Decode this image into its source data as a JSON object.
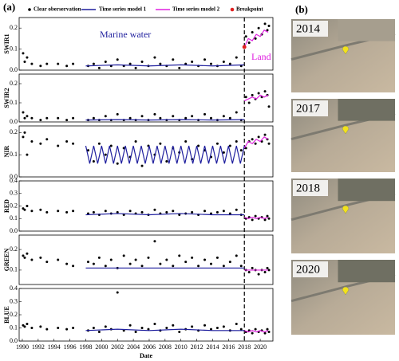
{
  "panel_label_a": "(a)",
  "panel_label_b": "(b)",
  "annotations": {
    "left": "Marine water",
    "right": "Land"
  },
  "images": [
    {
      "year": "2014"
    },
    {
      "year": "2017"
    },
    {
      "year": "2018"
    },
    {
      "year": "2020"
    }
  ],
  "chart_data": [
    {
      "type": "scatter",
      "ylabel": "SWIR1",
      "xlim": [
        1989.6,
        2021.6
      ],
      "ylim": [
        0,
        0.25
      ],
      "yticks": [
        {
          "value": 0,
          "label": "0.0"
        },
        0.1,
        0.2
      ],
      "breakpoint": {
        "name": "Breakpoint",
        "color": "#e02020",
        "x": 2018,
        "value": 0.11
      },
      "series": [
        {
          "name": "Clear oberservation",
          "color": "#000000",
          "style": "points",
          "x": [
            1990.1,
            1990.3,
            1990.6,
            1991.2,
            1992.3,
            1993.1,
            1994.5,
            1995.6,
            1996.4,
            1998.3,
            1999.0,
            1999.7,
            2000.5,
            2001.2,
            2002.0,
            2002.8,
            2003.6,
            2004.3,
            2005.1,
            2005.9,
            2006.7,
            2007.4,
            2008.2,
            2009.0,
            2009.8,
            2010.6,
            2011.4,
            2012.2,
            2013.0,
            2013.8,
            2014.6,
            2015.4,
            2016.2,
            2017.0,
            2017.6,
            2018.2,
            2018.6,
            2019.0,
            2019.4,
            2019.8,
            2020.2,
            2020.6,
            2020.9,
            2021.1
          ],
          "values": [
            0.08,
            0.04,
            0.06,
            0.03,
            0.02,
            0.03,
            0.03,
            0.02,
            0.03,
            0.02,
            0.03,
            0.01,
            0.04,
            0.02,
            0.05,
            0.02,
            0.03,
            0.01,
            0.04,
            0.02,
            0.06,
            0.03,
            0.02,
            0.05,
            0.01,
            0.03,
            0.04,
            0.02,
            0.05,
            0.03,
            0.02,
            0.04,
            0.03,
            0.06,
            0.02,
            0.16,
            0.13,
            0.18,
            0.15,
            0.2,
            0.17,
            0.22,
            0.19,
            0.21
          ]
        },
        {
          "name": "Time series model 1",
          "color": "#1f1f9e",
          "style": "line",
          "x": [
            1998,
            2002,
            2006,
            2010,
            2014,
            2018
          ],
          "values": [
            0.02,
            0.025,
            0.02,
            0.025,
            0.02,
            0.025
          ]
        },
        {
          "name": "Time series model 2",
          "color": "#e020e0",
          "style": "line",
          "x": [
            2018,
            2018.5,
            2019,
            2019.5,
            2020,
            2020.5,
            2021
          ],
          "values": [
            0.11,
            0.15,
            0.14,
            0.17,
            0.16,
            0.19,
            0.18
          ]
        }
      ]
    },
    {
      "type": "scatter",
      "ylabel": "SWIR2",
      "xlim": [
        1989.6,
        2021.6
      ],
      "ylim": [
        0,
        0.25
      ],
      "yticks": [
        {
          "value": 0,
          "label": "0.0"
        },
        0.1,
        0.2
      ],
      "series": [
        {
          "color": "#000000",
          "style": "points",
          "x": [
            1990.1,
            1990.3,
            1990.6,
            1991.2,
            1992.3,
            1993.1,
            1994.5,
            1995.6,
            1996.4,
            1998.3,
            1999.0,
            1999.7,
            2000.5,
            2001.2,
            2002.0,
            2002.8,
            2003.6,
            2004.3,
            2005.1,
            2005.9,
            2006.7,
            2007.4,
            2008.2,
            2009.0,
            2009.8,
            2010.6,
            2011.4,
            2012.2,
            2013.0,
            2013.8,
            2014.6,
            2015.4,
            2016.2,
            2017.0,
            2017.6,
            2018.2,
            2018.6,
            2019.0,
            2019.4,
            2019.8,
            2020.2,
            2020.6,
            2020.9,
            2021.1
          ],
          "values": [
            0.05,
            0.02,
            0.03,
            0.02,
            0.01,
            0.02,
            0.02,
            0.01,
            0.02,
            0.01,
            0.02,
            0.01,
            0.03,
            0.01,
            0.04,
            0.01,
            0.02,
            0.01,
            0.03,
            0.01,
            0.04,
            0.02,
            0.01,
            0.03,
            0.01,
            0.02,
            0.03,
            0.01,
            0.04,
            0.02,
            0.01,
            0.03,
            0.02,
            0.05,
            0.01,
            0.13,
            0.1,
            0.14,
            0.12,
            0.15,
            0.13,
            0.16,
            0.14,
            0.08
          ]
        },
        {
          "color": "#1f1f9e",
          "style": "line",
          "x": [
            1998,
            2002,
            2006,
            2010,
            2014,
            2018
          ],
          "values": [
            0.01,
            0.012,
            0.01,
            0.012,
            0.01,
            0.012
          ]
        },
        {
          "color": "#e020e0",
          "style": "line",
          "x": [
            2018,
            2018.5,
            2019,
            2019.5,
            2020,
            2020.5,
            2021
          ],
          "values": [
            0.11,
            0.12,
            0.13,
            0.12,
            0.14,
            0.13,
            0.14
          ]
        }
      ]
    },
    {
      "type": "scatter",
      "ylabel": "NIR",
      "xlim": [
        1989.6,
        2021.6
      ],
      "ylim": [
        0,
        0.23
      ],
      "yticks": [
        {
          "value": 0,
          "label": "0.0"
        },
        0.1,
        0.2
      ],
      "series": [
        {
          "color": "#000000",
          "style": "points",
          "x": [
            1990.1,
            1990.3,
            1990.6,
            1991.2,
            1992.3,
            1993.1,
            1994.5,
            1995.6,
            1996.4,
            1998.3,
            1999.0,
            1999.7,
            2000.5,
            2001.2,
            2002.0,
            2002.8,
            2003.6,
            2004.3,
            2005.1,
            2005.9,
            2006.7,
            2007.4,
            2008.2,
            2009.0,
            2009.8,
            2010.6,
            2011.4,
            2012.2,
            2013.0,
            2013.8,
            2014.6,
            2015.4,
            2016.2,
            2017.0,
            2017.6,
            2018.2,
            2018.6,
            2019.0,
            2019.4,
            2019.8,
            2020.2,
            2020.6,
            2020.9,
            2021.1
          ],
          "values": [
            0.18,
            0.2,
            0.1,
            0.16,
            0.15,
            0.17,
            0.14,
            0.16,
            0.15,
            0.12,
            0.07,
            0.15,
            0.1,
            0.14,
            0.06,
            0.13,
            0.09,
            0.16,
            0.05,
            0.14,
            0.1,
            0.15,
            0.07,
            0.13,
            0.11,
            0.16,
            0.08,
            0.14,
            0.12,
            0.09,
            0.15,
            0.11,
            0.14,
            0.16,
            0.12,
            0.13,
            0.16,
            0.17,
            0.15,
            0.18,
            0.16,
            0.19,
            0.17,
            0.15
          ]
        },
        {
          "color": "#1f1f9e",
          "style": "line",
          "x": [
            1998,
            1998.5,
            1999,
            1999.5,
            2000,
            2000.5,
            2001,
            2001.5,
            2002,
            2002.5,
            2003,
            2003.5,
            2004,
            2004.5,
            2005,
            2005.5,
            2006,
            2006.5,
            2007,
            2007.5,
            2008,
            2008.5,
            2009,
            2009.5,
            2010,
            2010.5,
            2011,
            2011.5,
            2012,
            2012.5,
            2013,
            2013.5,
            2014,
            2014.5,
            2015,
            2015.5,
            2016,
            2016.5,
            2017,
            2017.5,
            2018
          ],
          "values": [
            0.14,
            0.06,
            0.14,
            0.06,
            0.14,
            0.06,
            0.14,
            0.06,
            0.14,
            0.06,
            0.14,
            0.06,
            0.14,
            0.06,
            0.14,
            0.06,
            0.14,
            0.06,
            0.14,
            0.06,
            0.14,
            0.06,
            0.14,
            0.06,
            0.14,
            0.06,
            0.14,
            0.06,
            0.14,
            0.06,
            0.14,
            0.06,
            0.14,
            0.06,
            0.14,
            0.06,
            0.14,
            0.06,
            0.14,
            0.06,
            0.14
          ]
        },
        {
          "color": "#e020e0",
          "style": "line",
          "x": [
            2018,
            2018.5,
            2019,
            2019.5,
            2020,
            2020.5,
            2021
          ],
          "values": [
            0.13,
            0.16,
            0.15,
            0.17,
            0.16,
            0.18,
            0.17
          ]
        }
      ]
    },
    {
      "type": "scatter",
      "ylabel": "RED",
      "xlim": [
        1989.6,
        2021.6
      ],
      "ylim": [
        0,
        0.4
      ],
      "yticks": [
        {
          "value": 0,
          "label": "0.0"
        },
        0.1,
        0.2,
        0.3,
        0.4
      ],
      "series": [
        {
          "color": "#000000",
          "style": "points",
          "x": [
            1990.1,
            1990.3,
            1990.6,
            1991.2,
            1992.3,
            1993.1,
            1994.5,
            1995.6,
            1996.4,
            1998.3,
            1999.0,
            1999.7,
            2000.5,
            2001.2,
            2002.0,
            2002.8,
            2003.6,
            2004.3,
            2005.1,
            2005.9,
            2006.7,
            2007.4,
            2008.2,
            2009.0,
            2009.8,
            2010.6,
            2011.4,
            2012.2,
            2013.0,
            2013.8,
            2014.6,
            2015.4,
            2016.2,
            2017.0,
            2017.6,
            2018.2,
            2018.6,
            2019.0,
            2019.4,
            2019.8,
            2020.2,
            2020.6,
            2020.9,
            2021.1
          ],
          "values": [
            0.18,
            0.17,
            0.2,
            0.16,
            0.17,
            0.15,
            0.16,
            0.15,
            0.16,
            0.14,
            0.15,
            0.13,
            0.16,
            0.14,
            0.15,
            0.13,
            0.16,
            0.14,
            0.15,
            0.13,
            0.17,
            0.14,
            0.15,
            0.16,
            0.13,
            0.14,
            0.15,
            0.13,
            0.16,
            0.14,
            0.15,
            0.16,
            0.14,
            0.17,
            0.13,
            0.1,
            0.11,
            0.09,
            0.12,
            0.1,
            0.11,
            0.09,
            0.12,
            0.1
          ]
        },
        {
          "color": "#1f1f9e",
          "style": "line",
          "x": [
            1998,
            2002,
            2006,
            2010,
            2014,
            2018
          ],
          "values": [
            0.13,
            0.14,
            0.13,
            0.14,
            0.13,
            0.13
          ]
        },
        {
          "color": "#e020e0",
          "style": "line",
          "x": [
            2018,
            2018.5,
            2019,
            2019.5,
            2020,
            2020.5,
            2021
          ],
          "values": [
            0.11,
            0.1,
            0.11,
            0.1,
            0.11,
            0.1,
            0.11
          ]
        }
      ]
    },
    {
      "type": "scatter",
      "ylabel": "GREEN",
      "xlim": [
        1989.6,
        2021.6
      ],
      "ylim": [
        0.03,
        0.27
      ],
      "yticks": [
        0.1,
        0.2
      ],
      "series": [
        {
          "color": "#000000",
          "style": "points",
          "x": [
            1990.1,
            1990.3,
            1990.6,
            1991.2,
            1992.3,
            1993.1,
            1994.5,
            1995.6,
            1996.4,
            1998.3,
            1999.0,
            1999.7,
            2000.5,
            2001.2,
            2002.0,
            2002.8,
            2003.6,
            2004.3,
            2005.1,
            2005.9,
            2006.7,
            2007.4,
            2008.2,
            2009.0,
            2009.8,
            2010.6,
            2011.4,
            2012.2,
            2013.0,
            2013.8,
            2014.6,
            2015.4,
            2016.2,
            2017.0,
            2017.6,
            2018.2,
            2018.6,
            2019.0,
            2019.4,
            2019.8,
            2020.2,
            2020.6,
            2020.9,
            2021.1
          ],
          "values": [
            0.17,
            0.16,
            0.18,
            0.15,
            0.16,
            0.14,
            0.15,
            0.13,
            0.12,
            0.14,
            0.13,
            0.16,
            0.12,
            0.15,
            0.11,
            0.17,
            0.13,
            0.15,
            0.12,
            0.16,
            0.24,
            0.13,
            0.15,
            0.12,
            0.17,
            0.14,
            0.16,
            0.12,
            0.15,
            0.13,
            0.16,
            0.12,
            0.14,
            0.17,
            0.12,
            0.1,
            0.09,
            0.11,
            0.1,
            0.08,
            0.1,
            0.09,
            0.11,
            0.1
          ]
        },
        {
          "color": "#1f1f9e",
          "style": "line",
          "x": [
            1998,
            2002,
            2006,
            2010,
            2014,
            2018
          ],
          "values": [
            0.11,
            0.11,
            0.11,
            0.11,
            0.11,
            0.11
          ]
        },
        {
          "color": "#e020e0",
          "style": "line",
          "x": [
            2018,
            2018.5,
            2019,
            2019.5,
            2020,
            2020.5,
            2021
          ],
          "values": [
            0.1,
            0.1,
            0.1,
            0.1,
            0.1,
            0.1,
            0.1
          ]
        }
      ]
    },
    {
      "type": "scatter",
      "ylabel": "BLUE",
      "xlabel": "Date",
      "xlim": [
        1989.6,
        2021.6
      ],
      "ylim": [
        0,
        0.4
      ],
      "yticks": [
        {
          "value": 0,
          "label": "0.0"
        },
        0.1,
        0.2,
        0.3,
        0.4
      ],
      "xticks": [
        1990,
        1992,
        1994,
        1996,
        1998,
        2000,
        2002,
        2004,
        2006,
        2008,
        2010,
        2012,
        2014,
        2016,
        2018,
        2020
      ],
      "series": [
        {
          "color": "#000000",
          "style": "points",
          "x": [
            1990.1,
            1990.3,
            1990.6,
            1991.2,
            1992.3,
            1993.1,
            1994.5,
            1995.6,
            1996.4,
            1998.3,
            1999.0,
            1999.7,
            2000.5,
            2001.2,
            2002.0,
            2002.8,
            2003.6,
            2004.3,
            2005.1,
            2005.9,
            2006.7,
            2007.4,
            2008.2,
            2009.0,
            2009.8,
            2010.6,
            2011.4,
            2012.2,
            2013.0,
            2013.8,
            2014.6,
            2015.4,
            2016.2,
            2017.0,
            2017.6,
            2018.2,
            2018.6,
            2019.0,
            2019.4,
            2019.8,
            2020.2,
            2020.6,
            2020.9,
            2021.1
          ],
          "values": [
            0.12,
            0.11,
            0.13,
            0.1,
            0.11,
            0.09,
            0.1,
            0.09,
            0.1,
            0.08,
            0.1,
            0.07,
            0.11,
            0.09,
            0.37,
            0.08,
            0.12,
            0.07,
            0.1,
            0.09,
            0.13,
            0.08,
            0.1,
            0.12,
            0.07,
            0.09,
            0.11,
            0.08,
            0.12,
            0.09,
            0.1,
            0.11,
            0.08,
            0.13,
            0.09,
            0.07,
            0.08,
            0.06,
            0.09,
            0.07,
            0.08,
            0.06,
            0.09,
            0.07
          ]
        },
        {
          "color": "#1f1f9e",
          "style": "line",
          "x": [
            1998,
            2002,
            2006,
            2010,
            2014,
            2018
          ],
          "values": [
            0.08,
            0.09,
            0.08,
            0.09,
            0.08,
            0.08
          ]
        },
        {
          "color": "#e020e0",
          "style": "line",
          "x": [
            2018,
            2018.5,
            2019,
            2019.5,
            2020,
            2020.5,
            2021
          ],
          "values": [
            0.08,
            0.07,
            0.08,
            0.07,
            0.08,
            0.07,
            0.08
          ]
        }
      ]
    }
  ]
}
